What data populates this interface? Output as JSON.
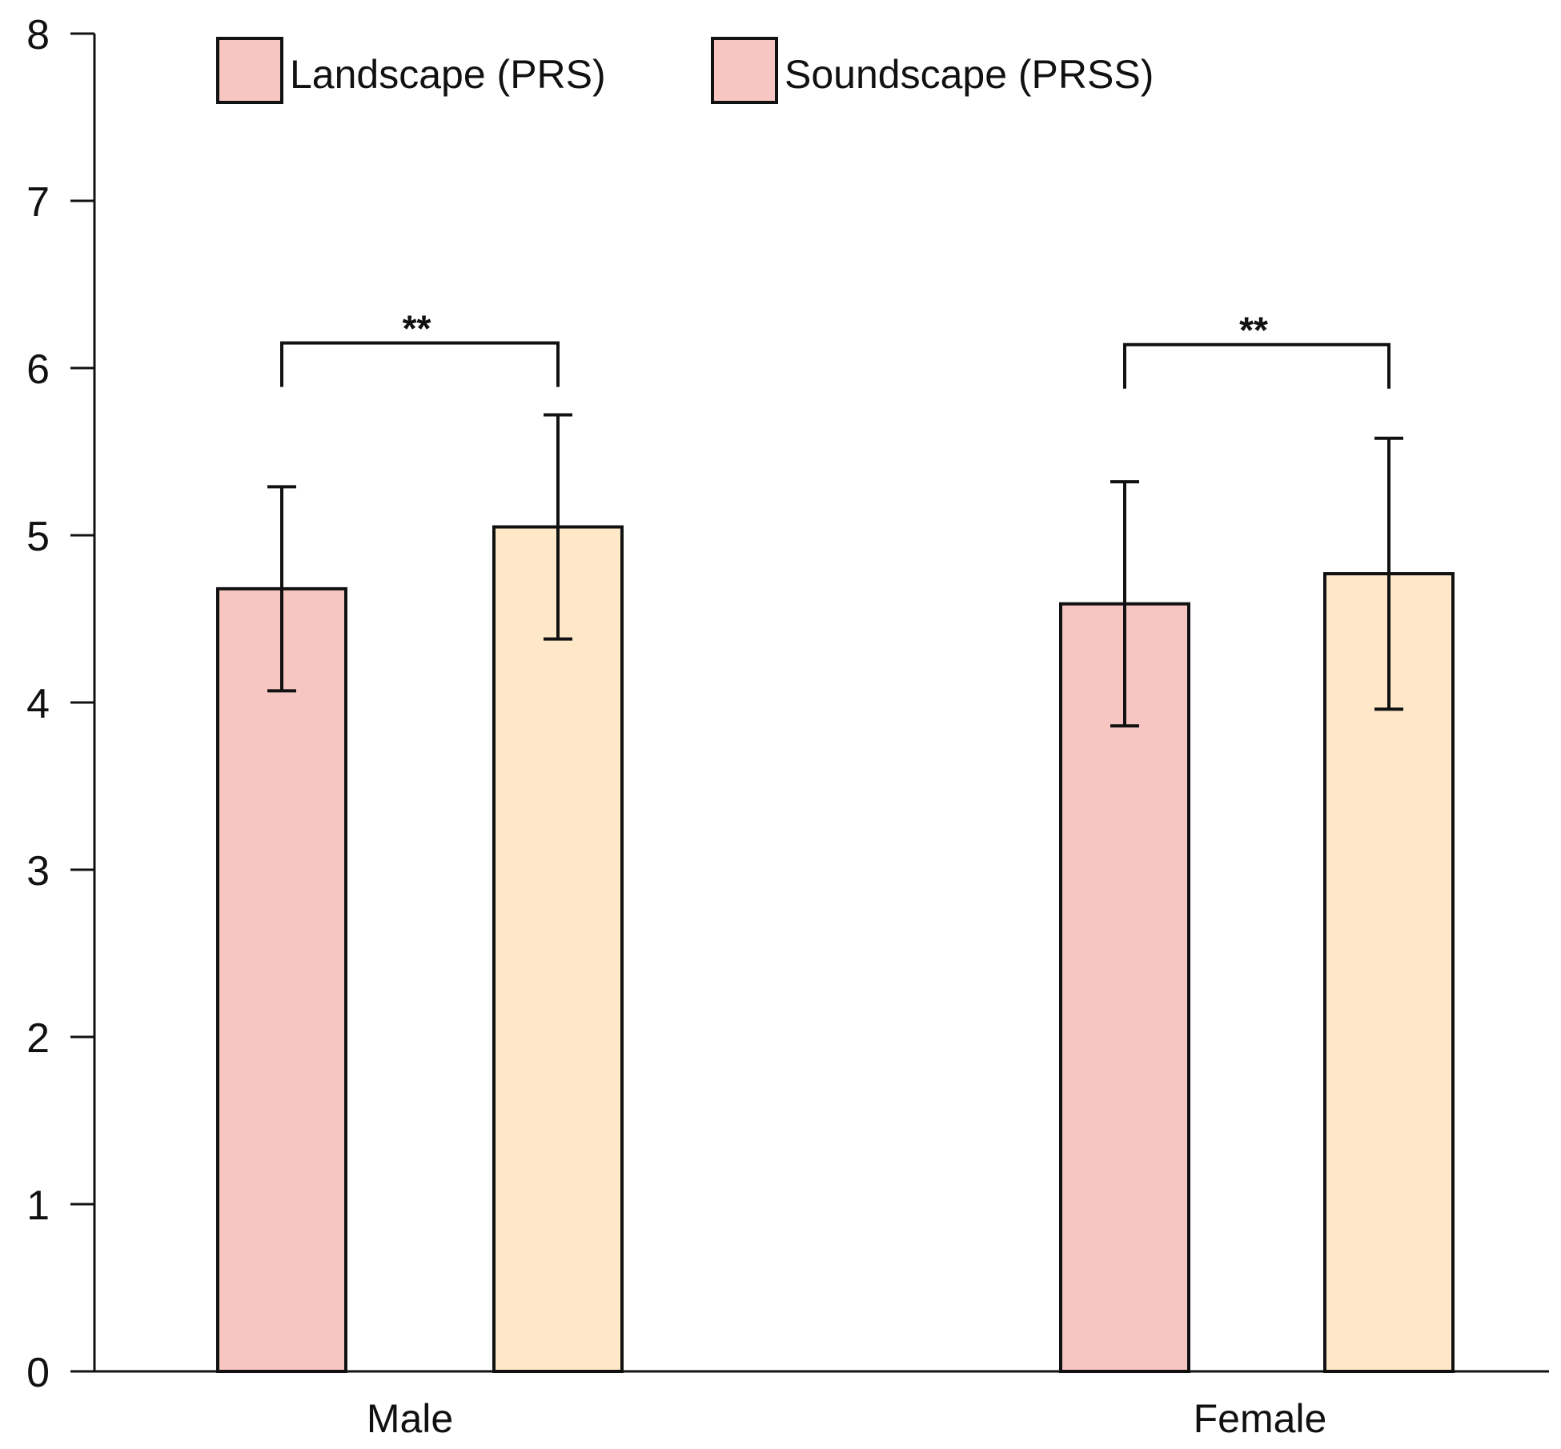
{
  "chart_data": {
    "type": "bar",
    "title": "",
    "xlabel": "",
    "ylabel": "",
    "ylim": [
      0,
      8
    ],
    "yticks": [
      "0",
      "1",
      "2",
      "3",
      "4",
      "5",
      "6",
      "7",
      "8"
    ],
    "categories": [
      "Male",
      "Female"
    ],
    "series": [
      {
        "name": "Landscape (PRS)",
        "color": "#F7C6C3",
        "values": [
          4.68,
          4.59
        ],
        "errors": [
          0.61,
          0.73
        ]
      },
      {
        "name": "Soundscape (PRSS)",
        "color": "#FEE8C8",
        "values": [
          5.05,
          4.77
        ],
        "errors": [
          0.67,
          0.81
        ]
      }
    ],
    "legend_swatch_color": "#F7C6C3",
    "legend_position": "top",
    "significance": [
      {
        "category": "Male",
        "label": "**",
        "bracket_y": 6.15
      },
      {
        "category": "Female",
        "label": "**",
        "bracket_y": 6.14
      }
    ]
  }
}
